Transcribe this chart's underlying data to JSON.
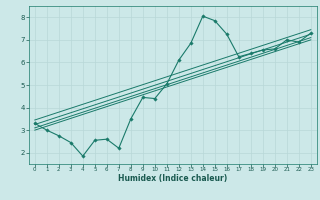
{
  "title": "",
  "xlabel": "Humidex (Indice chaleur)",
  "bg_color": "#cce8e8",
  "grid_color": "#b8d8d8",
  "line_color": "#1a7a6a",
  "xlim": [
    -0.5,
    23.5
  ],
  "ylim": [
    1.5,
    8.5
  ],
  "xticks": [
    0,
    1,
    2,
    3,
    4,
    5,
    6,
    7,
    8,
    9,
    10,
    11,
    12,
    13,
    14,
    15,
    16,
    17,
    18,
    19,
    20,
    21,
    22,
    23
  ],
  "yticks": [
    2,
    3,
    4,
    5,
    6,
    7,
    8
  ],
  "curve1_x": [
    0,
    1,
    2,
    3,
    4,
    5,
    6,
    7,
    8,
    9,
    10,
    11,
    12,
    13,
    14,
    15,
    16,
    17,
    18,
    19,
    20,
    21,
    22,
    23
  ],
  "curve1_y": [
    3.3,
    3.0,
    2.75,
    2.45,
    1.85,
    2.55,
    2.6,
    2.2,
    3.5,
    4.45,
    4.4,
    5.05,
    6.1,
    6.85,
    8.05,
    7.85,
    7.25,
    6.25,
    6.4,
    6.55,
    6.6,
    7.0,
    6.9,
    7.3
  ],
  "line2_x": [
    0,
    23
  ],
  "line2_y": [
    3.25,
    7.25
  ],
  "line3_x": [
    0,
    23
  ],
  "line3_y": [
    3.1,
    7.1
  ],
  "line4_x": [
    0,
    23
  ],
  "line4_y": [
    3.45,
    7.45
  ],
  "line5_x": [
    0,
    23
  ],
  "line5_y": [
    3.0,
    7.0
  ]
}
